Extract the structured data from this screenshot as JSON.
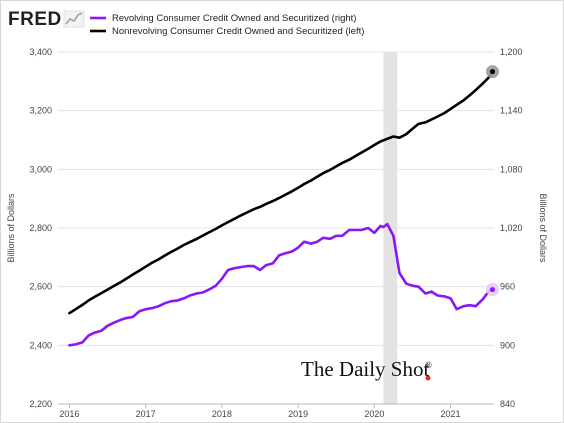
{
  "brand": {
    "name": "FRED",
    "icon": "line-chart-icon"
  },
  "chart_data": {
    "type": "line",
    "legend_placement": "top-left",
    "grid": true,
    "x_ticks": [
      "2016",
      "2017",
      "2018",
      "2019",
      "2020",
      "2021"
    ],
    "xlim": [
      2015.85,
      2021.57
    ],
    "recession_band": [
      2020.12,
      2020.3
    ],
    "left_axis": {
      "label": "Billions of Dollars",
      "ylim": [
        2200,
        3400
      ],
      "ticks": [
        "2,200",
        "2,400",
        "2,600",
        "2,800",
        "3,000",
        "3,200",
        "3,400"
      ]
    },
    "right_axis": {
      "label": "Billions of Dollars",
      "ylim": [
        840,
        1200
      ],
      "ticks": [
        "840",
        "900",
        "960",
        "1,020",
        "1,080",
        "1,140",
        "1,200"
      ]
    },
    "series": [
      {
        "name": "Revolving Consumer Credit Owned and Securitized (right)",
        "axis": "right",
        "color": "#8a17f5",
        "end_marker_color": "#e9c8f4",
        "points": [
          [
            2016.0,
            900
          ],
          [
            2016.08,
            901
          ],
          [
            2016.17,
            903
          ],
          [
            2016.25,
            910
          ],
          [
            2016.33,
            913
          ],
          [
            2016.42,
            915
          ],
          [
            2016.5,
            920
          ],
          [
            2016.58,
            923
          ],
          [
            2016.67,
            926
          ],
          [
            2016.75,
            928
          ],
          [
            2016.83,
            929
          ],
          [
            2016.92,
            935
          ],
          [
            2017.0,
            937
          ],
          [
            2017.08,
            938
          ],
          [
            2017.17,
            940
          ],
          [
            2017.25,
            943
          ],
          [
            2017.33,
            945
          ],
          [
            2017.42,
            946
          ],
          [
            2017.5,
            948
          ],
          [
            2017.58,
            951
          ],
          [
            2017.67,
            953
          ],
          [
            2017.75,
            954
          ],
          [
            2017.83,
            957
          ],
          [
            2017.92,
            961
          ],
          [
            2018.0,
            968
          ],
          [
            2018.08,
            977
          ],
          [
            2018.17,
            979
          ],
          [
            2018.25,
            980
          ],
          [
            2018.33,
            981
          ],
          [
            2018.42,
            981
          ],
          [
            2018.5,
            977
          ],
          [
            2018.58,
            982
          ],
          [
            2018.67,
            984
          ],
          [
            2018.75,
            992
          ],
          [
            2018.83,
            994
          ],
          [
            2018.92,
            996
          ],
          [
            2019.0,
            1000
          ],
          [
            2019.08,
            1006
          ],
          [
            2019.17,
            1004
          ],
          [
            2019.25,
            1006
          ],
          [
            2019.33,
            1010
          ],
          [
            2019.42,
            1009
          ],
          [
            2019.5,
            1012
          ],
          [
            2019.58,
            1012
          ],
          [
            2019.67,
            1018
          ],
          [
            2019.75,
            1018
          ],
          [
            2019.83,
            1018
          ],
          [
            2019.92,
            1020
          ],
          [
            2020.0,
            1015
          ],
          [
            2020.08,
            1022
          ],
          [
            2020.12,
            1021
          ],
          [
            2020.17,
            1024
          ],
          [
            2020.25,
            1012
          ],
          [
            2020.33,
            974
          ],
          [
            2020.42,
            963
          ],
          [
            2020.5,
            961
          ],
          [
            2020.58,
            960
          ],
          [
            2020.67,
            953
          ],
          [
            2020.75,
            955
          ],
          [
            2020.83,
            951
          ],
          [
            2020.92,
            950
          ],
          [
            2021.0,
            948
          ],
          [
            2021.08,
            937
          ],
          [
            2021.17,
            940
          ],
          [
            2021.25,
            941
          ],
          [
            2021.33,
            940
          ],
          [
            2021.42,
            947
          ],
          [
            2021.5,
            955
          ],
          [
            2021.55,
            957
          ]
        ]
      },
      {
        "name": "Nonrevolving Consumer Credit Owned and Securitized (left)",
        "axis": "left",
        "color": "#000000",
        "end_marker_color": "#9a9a9a",
        "points": [
          [
            2016.0,
            2510
          ],
          [
            2016.08,
            2523
          ],
          [
            2016.17,
            2538
          ],
          [
            2016.25,
            2553
          ],
          [
            2016.33,
            2565
          ],
          [
            2016.42,
            2578
          ],
          [
            2016.5,
            2590
          ],
          [
            2016.58,
            2602
          ],
          [
            2016.67,
            2615
          ],
          [
            2016.75,
            2628
          ],
          [
            2016.83,
            2641
          ],
          [
            2016.92,
            2655
          ],
          [
            2017.0,
            2668
          ],
          [
            2017.08,
            2681
          ],
          [
            2017.17,
            2693
          ],
          [
            2017.25,
            2706
          ],
          [
            2017.33,
            2718
          ],
          [
            2017.42,
            2730
          ],
          [
            2017.5,
            2742
          ],
          [
            2017.58,
            2752
          ],
          [
            2017.67,
            2763
          ],
          [
            2017.75,
            2774
          ],
          [
            2017.83,
            2785
          ],
          [
            2017.92,
            2797
          ],
          [
            2018.0,
            2809
          ],
          [
            2018.08,
            2820
          ],
          [
            2018.17,
            2832
          ],
          [
            2018.25,
            2843
          ],
          [
            2018.33,
            2853
          ],
          [
            2018.42,
            2864
          ],
          [
            2018.5,
            2872
          ],
          [
            2018.58,
            2882
          ],
          [
            2018.67,
            2892
          ],
          [
            2018.75,
            2902
          ],
          [
            2018.83,
            2913
          ],
          [
            2018.92,
            2925
          ],
          [
            2019.0,
            2937
          ],
          [
            2019.08,
            2950
          ],
          [
            2019.17,
            2962
          ],
          [
            2019.25,
            2975
          ],
          [
            2019.33,
            2987
          ],
          [
            2019.42,
            2998
          ],
          [
            2019.5,
            3010
          ],
          [
            2019.58,
            3022
          ],
          [
            2019.67,
            3033
          ],
          [
            2019.75,
            3045
          ],
          [
            2019.83,
            3057
          ],
          [
            2019.92,
            3070
          ],
          [
            2020.0,
            3083
          ],
          [
            2020.08,
            3095
          ],
          [
            2020.17,
            3104
          ],
          [
            2020.25,
            3112
          ],
          [
            2020.33,
            3108
          ],
          [
            2020.42,
            3120
          ],
          [
            2020.5,
            3138
          ],
          [
            2020.58,
            3155
          ],
          [
            2020.67,
            3160
          ],
          [
            2020.75,
            3170
          ],
          [
            2020.83,
            3180
          ],
          [
            2020.92,
            3192
          ],
          [
            2021.0,
            3206
          ],
          [
            2021.08,
            3220
          ],
          [
            2021.17,
            3235
          ],
          [
            2021.25,
            3252
          ],
          [
            2021.33,
            3270
          ],
          [
            2021.42,
            3292
          ],
          [
            2021.5,
            3313
          ],
          [
            2021.55,
            3333
          ]
        ]
      }
    ]
  },
  "watermark": {
    "text": "The Daily Shot",
    "mark": "®"
  }
}
